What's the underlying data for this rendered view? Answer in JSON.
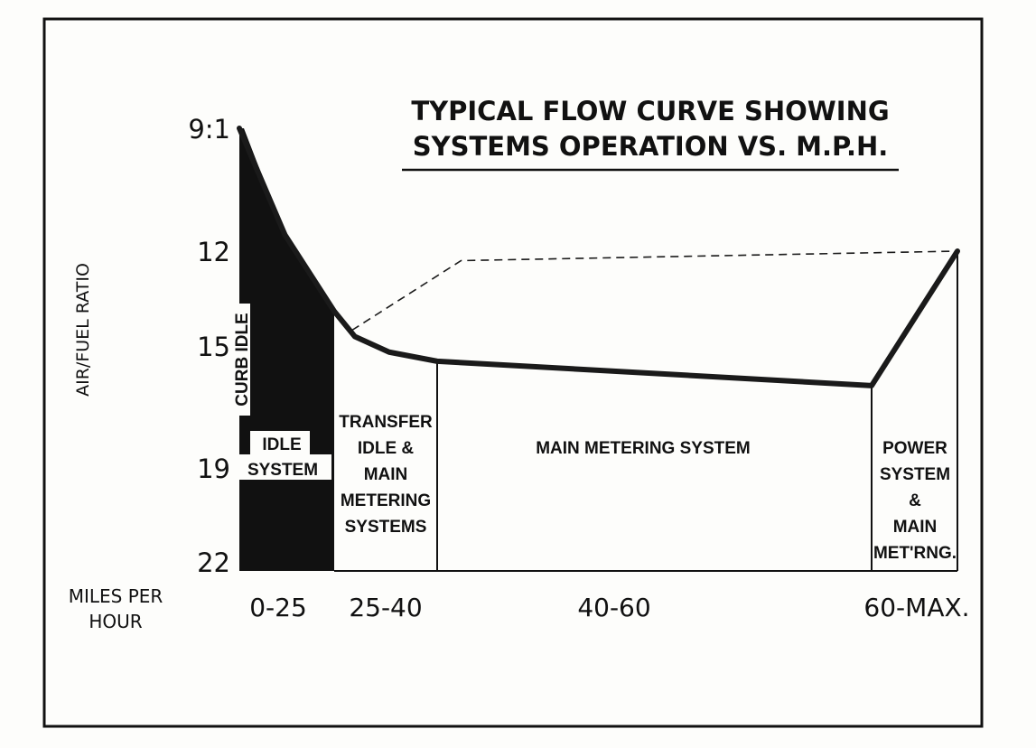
{
  "chart_data": {
    "type": "line",
    "title": "TYPICAL FLOW CURVE SHOWING SYSTEMS OPERATION VS. M.P.H.",
    "title_lines": [
      "TYPICAL FLOW CURVE SHOWING",
      "SYSTEMS OPERATION VS. M.P.H."
    ],
    "ylabel": "AIR/FUEL RATIO",
    "xlabel_lines": [
      "MILES PER",
      "HOUR"
    ],
    "y_ticks": [
      "9:1",
      "12",
      "15",
      "19",
      "22"
    ],
    "y_tick_values": [
      9,
      12,
      15,
      19,
      22
    ],
    "y_inverted": true,
    "x_categories": [
      "0-25",
      "25-40",
      "40-60",
      "60-MAX."
    ],
    "regions": [
      {
        "range": "0-25",
        "label_lines": [
          "IDLE",
          "SYSTEM"
        ],
        "side_label": "CURB IDLE",
        "filled": true,
        "fill": "#111111"
      },
      {
        "range": "25-40",
        "label_lines": [
          "TRANSFER",
          "IDLE &",
          "MAIN",
          "METERING",
          "SYSTEMS"
        ],
        "filled": false
      },
      {
        "range": "40-60",
        "label_lines": [
          "MAIN METERING SYSTEM"
        ],
        "filled": false
      },
      {
        "range": "60-MAX.",
        "label_lines": [
          "POWER",
          "SYSTEM",
          "&",
          "MAIN",
          "MET'RNG."
        ],
        "filled": false
      }
    ],
    "series": [
      {
        "style": "solid",
        "points": [
          {
            "mph": 0,
            "ratio": 9
          },
          {
            "mph": 12,
            "ratio": 11.6
          },
          {
            "mph": 25,
            "ratio": 13.9
          },
          {
            "mph": 28,
            "ratio": 14.7
          },
          {
            "mph": 33,
            "ratio": 15.2
          },
          {
            "mph": 40,
            "ratio": 15.5
          },
          {
            "mph": 60,
            "ratio": 16.3
          },
          {
            "mph": "MAX",
            "ratio": 12
          }
        ]
      },
      {
        "style": "dashed",
        "points": [
          {
            "mph": 27.6,
            "ratio": 14.5
          },
          {
            "mph": 41.1,
            "ratio": 12.3
          },
          {
            "mph": "MAX",
            "ratio": 12
          }
        ]
      }
    ],
    "grid": false,
    "legend": "none"
  }
}
